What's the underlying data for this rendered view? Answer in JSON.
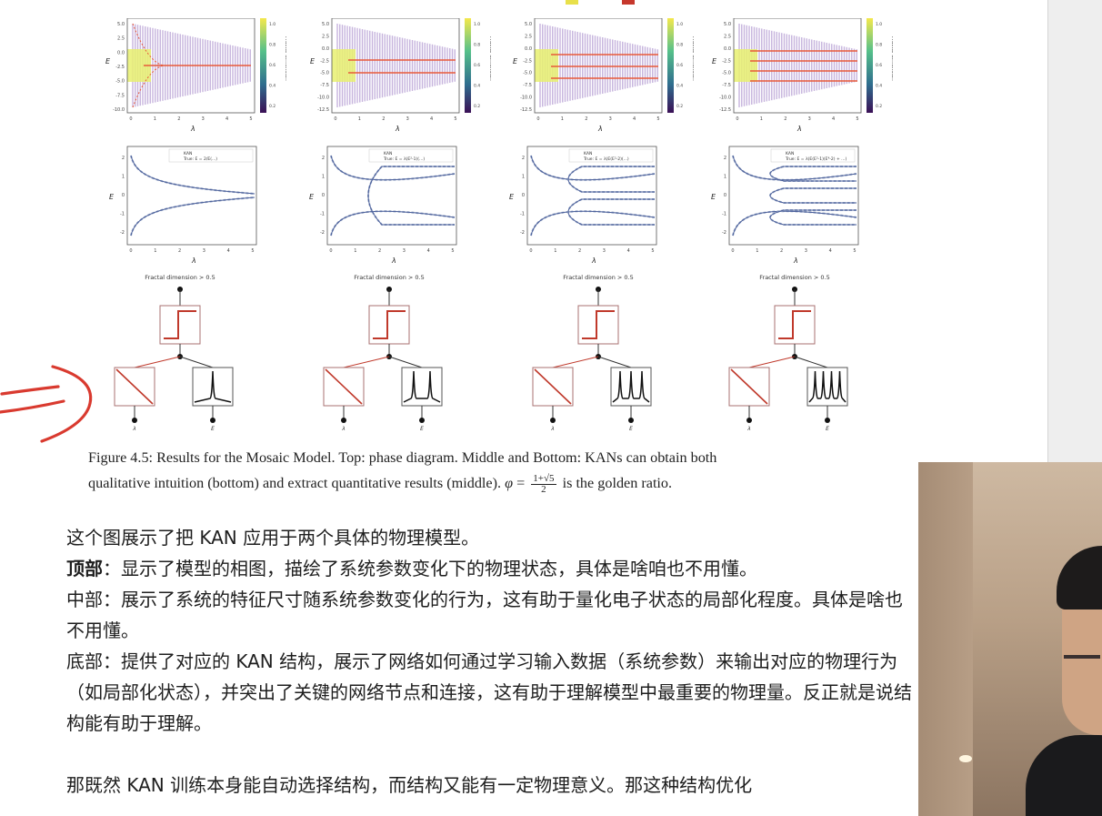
{
  "figure": {
    "number": "Figure 4.5:",
    "caption_line1": "Results for the Mosaic Model. Top: phase diagram. Middle and Bottom: KANs can obtain both",
    "caption_line2_pre": "qualitative intuition (bottom) and extract quantitative results (middle).",
    "phi_symbol": "φ",
    "equals": "=",
    "frac_num": "1+√5",
    "frac_den": "2",
    "caption_line2_post": "is the golden ratio.",
    "top_row": {
      "ylabel": "E",
      "xlabel": "λ",
      "colorbar_label": "Fractal dimension",
      "yticks_first": [
        "5.0",
        "2.5",
        "0.0",
        "-2.5",
        "-5.0",
        "-7.5",
        "-10.0"
      ],
      "yticks_other": [
        "5.0",
        "2.5",
        "0.0",
        "-2.5",
        "-5.0",
        "-7.5",
        "-10.0",
        "-12.5"
      ],
      "xticks": [
        "0",
        "1",
        "2",
        "3",
        "4",
        "5"
      ],
      "cbar_ticks": [
        "1.0",
        "0.8",
        "0.6",
        "0.4",
        "0.2"
      ]
    },
    "middle_row": {
      "ylabel": "E",
      "xlabel": "λ",
      "legend_kan": "KAN",
      "legend_true": [
        "True: E = 2/E(...)",
        "True: E = λ(E²-1)(...)",
        "True: E = λ(E(E²-2)(...)",
        "True: E = λ(E(E²-1)(E⁴-2) + ...)"
      ],
      "yticks": [
        "2",
        "1",
        "0",
        "-1",
        "-2"
      ],
      "xticks": [
        "0",
        "1",
        "2",
        "3",
        "4",
        "5"
      ]
    },
    "bottom_row": {
      "title": "Fractal dimension > 0.5",
      "input_left": "λ",
      "input_right": "E"
    }
  },
  "annotation": {
    "color": "#d93a2f"
  },
  "body": {
    "p1": "这个图展示了把 KAN 应用于两个具体的物理模型。",
    "p2_label": "顶部",
    "p2_text": "：显示了模型的相图，描绘了系统参数变化下的物理状态，具体是啥咱也不用懂。",
    "p3": "中部：展示了系统的特征尺寸随系统参数变化的行为，这有助于量化电子状态的局部化程度。具体是啥也不用懂。",
    "p4": "底部：提供了对应的 KAN 结构，展示了网络如何通过学习输入数据（系统参数）来输出对应的物理行为（如局部化状态），并突出了关键的网络节点和连接，这有助于理解模型中最重要的物理量。反正就是说结构能有助于理解。",
    "p5": "那既然 KAN 训练本身能自动选择结构，而结构又能有一定物理意义。那这种结构优化"
  },
  "colors": {
    "page": "#ffffff",
    "gutter": "#eeeeee",
    "kan_line": "#4a5f9a",
    "true_line": "#9aa9c8",
    "phase_band": "#b39ad2",
    "phase_bright": "#e8f070",
    "phase_line": "#e85a3a",
    "node_red": "#c0392b"
  }
}
